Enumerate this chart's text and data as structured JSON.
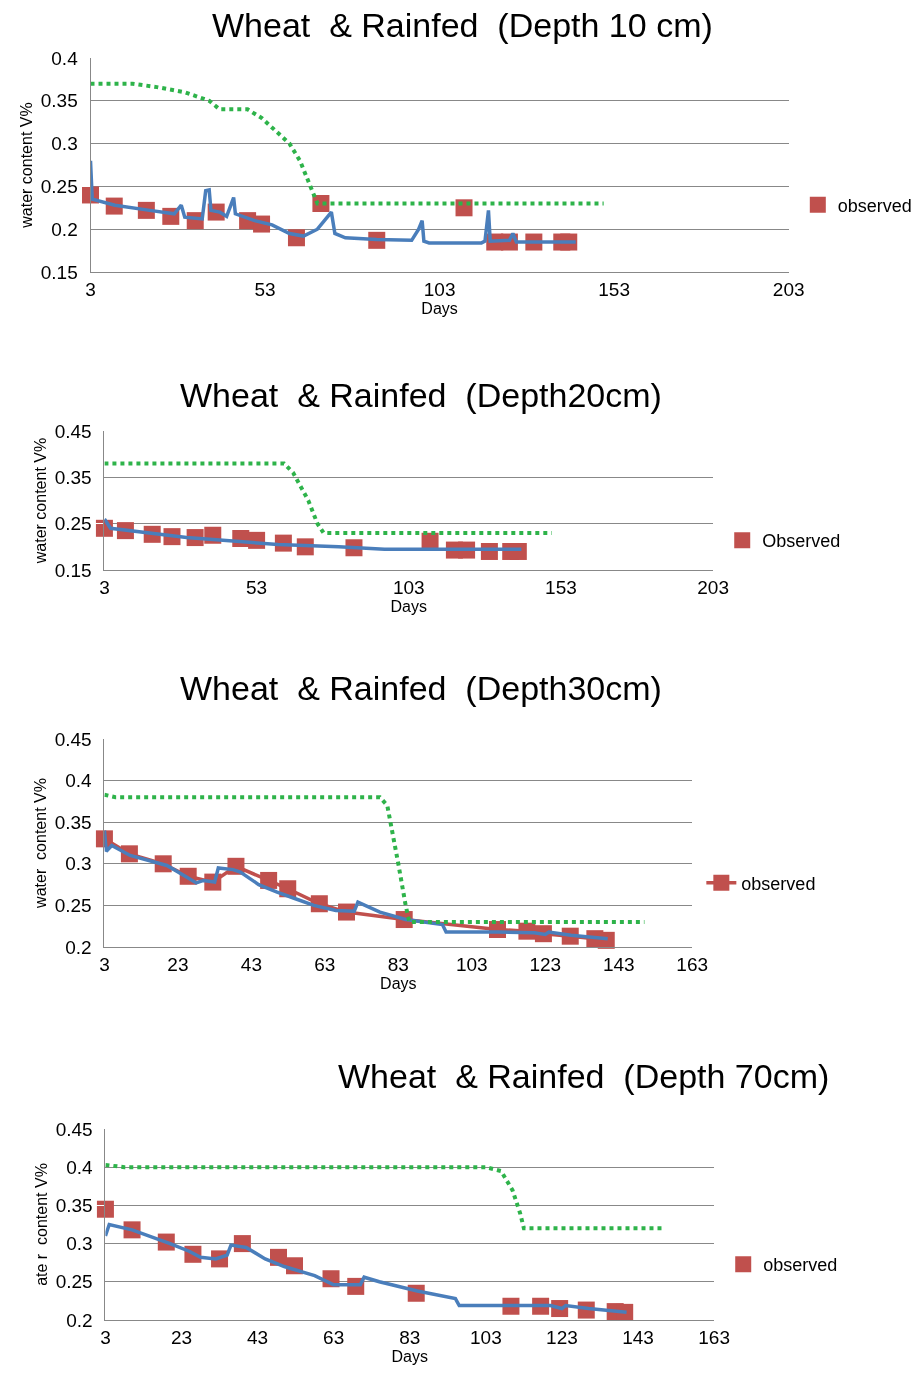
{
  "chart_data": [
    {
      "type": "line",
      "title": "Wheat  & Rainfed  (Depth 10 cm)",
      "xlabel": "Days",
      "ylabel": "water content V%",
      "xlim": [
        3,
        203
      ],
      "xticks": [
        3,
        53,
        103,
        153,
        203
      ],
      "ylim": [
        0.15,
        0.4
      ],
      "yticks": [
        0.15,
        0.2,
        0.25,
        0.3,
        0.35,
        0.4
      ],
      "grid": "y",
      "legend": "right",
      "series": [
        {
          "color": "#2eb34a",
          "line_style": "dotted",
          "marker": "none",
          "x": [
            3,
            15,
            22,
            30,
            37,
            40,
            48,
            52,
            56,
            60,
            63,
            66,
            68,
            150
          ],
          "values": [
            0.37,
            0.37,
            0.366,
            0.36,
            0.35,
            0.34,
            0.34,
            0.33,
            0.315,
            0.3,
            0.28,
            0.25,
            0.23,
            0.23
          ]
        },
        {
          "color": "#4a7ebb",
          "line_style": "solid",
          "marker": "none",
          "x": [
            3,
            3.5,
            10,
            20,
            27,
            29,
            30,
            35,
            36,
            37,
            37.5,
            40,
            42,
            44,
            44.5,
            50,
            55,
            60,
            64,
            68,
            71,
            72,
            73,
            76,
            85,
            95,
            97,
            98,
            98.5,
            100,
            115,
            116,
            117,
            117.5,
            123,
            124,
            125,
            142
          ],
          "values": [
            0.28,
            0.235,
            0.228,
            0.222,
            0.218,
            0.228,
            0.214,
            0.212,
            0.245,
            0.246,
            0.222,
            0.22,
            0.215,
            0.237,
            0.218,
            0.21,
            0.205,
            0.195,
            0.192,
            0.2,
            0.215,
            0.22,
            0.195,
            0.19,
            0.188,
            0.187,
            0.2,
            0.21,
            0.186,
            0.184,
            0.184,
            0.186,
            0.222,
            0.186,
            0.187,
            0.195,
            0.185,
            0.185
          ]
        },
        {
          "type": "scatter",
          "name": "observed",
          "color": "#c0504d",
          "marker": "square",
          "x": [
            3,
            9.8,
            19,
            26,
            33,
            39,
            48,
            52,
            62,
            69,
            85,
            110,
            118.8,
            123,
            130,
            138,
            140
          ],
          "values": [
            0.24,
            0.227,
            0.222,
            0.215,
            0.21,
            0.22,
            0.21,
            0.206,
            0.19,
            0.23,
            0.187,
            0.225,
            0.185,
            0.185,
            0.185,
            0.185,
            0.185
          ]
        }
      ]
    },
    {
      "type": "line",
      "title": "Wheat  & Rainfed  (Depth20cm)",
      "xlabel": "Days",
      "ylabel": "water content V%",
      "xlim": [
        3,
        203
      ],
      "xticks": [
        3,
        53,
        103,
        153,
        203
      ],
      "ylim": [
        0.15,
        0.45
      ],
      "yticks": [
        0.15,
        0.25,
        0.35,
        0.45
      ],
      "grid": "y",
      "legend": "right",
      "series": [
        {
          "color": "#2eb34a",
          "line_style": "dotted",
          "marker": "none",
          "x": [
            3,
            62,
            65,
            70,
            73,
            75,
            150
          ],
          "values": [
            0.38,
            0.38,
            0.36,
            0.3,
            0.25,
            0.23,
            0.23
          ]
        },
        {
          "color": "#4a7ebb",
          "line_style": "solid",
          "marker": "none",
          "x": [
            3,
            5,
            30,
            60,
            80,
            95,
            140
          ],
          "values": [
            0.26,
            0.24,
            0.22,
            0.205,
            0.2,
            0.195,
            0.195
          ]
        },
        {
          "type": "scatter",
          "name": "Observed",
          "color": "#c0504d",
          "marker": "square",
          "x": [
            3,
            9.9,
            18.7,
            25.2,
            32.8,
            38.6,
            47.8,
            53,
            61.8,
            69,
            85,
            110,
            118,
            122,
            129.5,
            136.5,
            139
          ],
          "values": [
            0.24,
            0.235,
            0.227,
            0.222,
            0.22,
            0.225,
            0.218,
            0.214,
            0.208,
            0.2,
            0.198,
            0.212,
            0.193,
            0.193,
            0.19,
            0.19,
            0.19
          ]
        }
      ]
    },
    {
      "type": "line",
      "title": "Wheat  & Rainfed  (Depth30cm)",
      "xlabel": "Days",
      "ylabel": "water  content V%",
      "xlim": [
        3,
        163
      ],
      "xticks": [
        3,
        23,
        43,
        63,
        83,
        103,
        123,
        143,
        163
      ],
      "ylim": [
        0.2,
        0.45
      ],
      "yticks": [
        0.2,
        0.25,
        0.3,
        0.35,
        0.4,
        0.45
      ],
      "grid": "y",
      "legend": "right",
      "series": [
        {
          "color": "#2eb34a",
          "line_style": "dotted",
          "marker": "none",
          "x": [
            3,
            6,
            78,
            80,
            83,
            85,
            86,
            150
          ],
          "values": [
            0.383,
            0.38,
            0.38,
            0.37,
            0.3,
            0.25,
            0.23,
            0.23
          ]
        },
        {
          "color": "#4a7ebb",
          "line_style": "solid",
          "marker": "none",
          "x": [
            3,
            3.5,
            5,
            10,
            20,
            25,
            28,
            30,
            33,
            34,
            38,
            40,
            45,
            50,
            55,
            60,
            66,
            71,
            72,
            78,
            85,
            95,
            96,
            110,
            120,
            123,
            124,
            130,
            140
          ],
          "values": [
            0.34,
            0.315,
            0.322,
            0.31,
            0.298,
            0.285,
            0.277,
            0.28,
            0.278,
            0.295,
            0.293,
            0.29,
            0.275,
            0.266,
            0.258,
            0.25,
            0.244,
            0.243,
            0.254,
            0.242,
            0.233,
            0.227,
            0.218,
            0.218,
            0.217,
            0.215,
            0.218,
            0.214,
            0.21
          ]
        },
        {
          "name": "observed",
          "color": "#c0504d",
          "line_style": "solid",
          "marker": "square",
          "x": [
            3,
            9.8,
            19,
            25.8,
            32.5,
            38.8,
            47.7,
            52.9,
            61.5,
            68.9,
            84.6,
            110,
            118,
            122.5,
            129.8,
            136.5,
            139.6
          ],
          "values": [
            0.33,
            0.312,
            0.3,
            0.285,
            0.278,
            0.297,
            0.28,
            0.27,
            0.252,
            0.242,
            0.233,
            0.221,
            0.219,
            0.216,
            0.213,
            0.21,
            0.208
          ]
        }
      ]
    },
    {
      "type": "line",
      "title": "Wheat  & Rainfed  (Depth 70cm)",
      "xlabel": "Days",
      "ylabel": "ate r  content V%",
      "xlim": [
        3,
        163
      ],
      "xticks": [
        3,
        23,
        43,
        63,
        83,
        103,
        123,
        143,
        163
      ],
      "ylim": [
        0.2,
        0.45
      ],
      "yticks": [
        0.2,
        0.25,
        0.3,
        0.35,
        0.4,
        0.45
      ],
      "grid": "y",
      "legend": "right",
      "series": [
        {
          "color": "#2eb34a",
          "line_style": "dotted",
          "marker": "none",
          "x": [
            3,
            8,
            103,
            107,
            110,
            112,
            113,
            150
          ],
          "values": [
            0.403,
            0.4,
            0.4,
            0.395,
            0.37,
            0.34,
            0.32,
            0.32
          ]
        },
        {
          "color": "#4a7ebb",
          "line_style": "solid",
          "marker": "none",
          "x": [
            3,
            4,
            10,
            20,
            25,
            28,
            32,
            35,
            36,
            40,
            45,
            50,
            58,
            63,
            70,
            71,
            75,
            85,
            95,
            96,
            120,
            123,
            124,
            130,
            140
          ],
          "values": [
            0.31,
            0.325,
            0.318,
            0.3,
            0.29,
            0.282,
            0.28,
            0.285,
            0.298,
            0.295,
            0.28,
            0.27,
            0.258,
            0.246,
            0.246,
            0.256,
            0.25,
            0.238,
            0.228,
            0.219,
            0.219,
            0.215,
            0.219,
            0.215,
            0.21
          ]
        },
        {
          "type": "scatter",
          "name": "observed",
          "color": "#c0504d",
          "marker": "square",
          "x": [
            3,
            10,
            19,
            26,
            33,
            39,
            48.5,
            52.7,
            62.3,
            68.8,
            84.7,
            109.6,
            117.4,
            122.4,
            129.4,
            137,
            139.5
          ],
          "values": [
            0.345,
            0.318,
            0.302,
            0.286,
            0.28,
            0.3,
            0.282,
            0.271,
            0.254,
            0.244,
            0.235,
            0.218,
            0.218,
            0.215,
            0.213,
            0.211,
            0.21
          ]
        }
      ]
    }
  ]
}
